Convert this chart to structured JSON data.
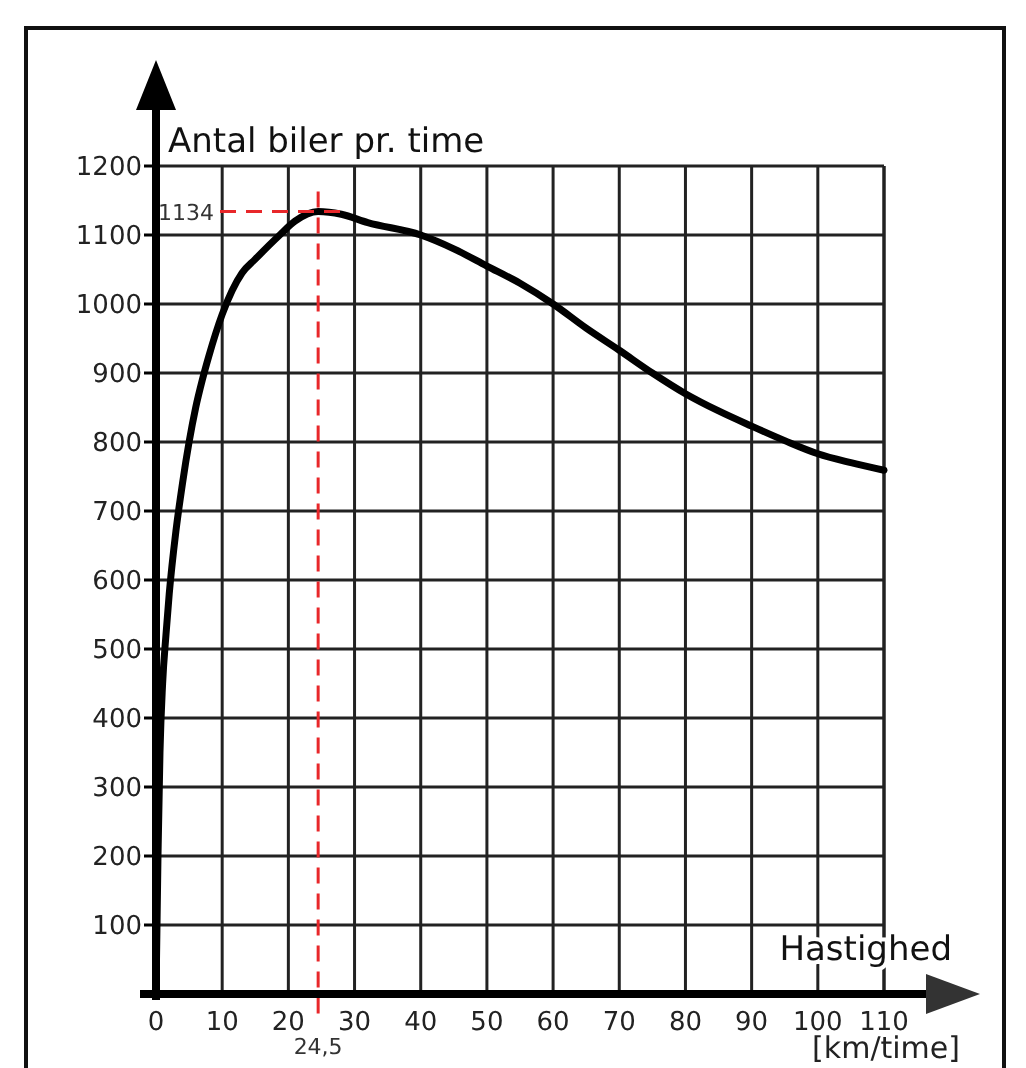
{
  "chart_data": {
    "type": "line",
    "xlabel": "Hastighed",
    "ylabel": "Antal biler pr. time",
    "annotations": [
      "[km/time]"
    ],
    "series": [
      {
        "color": "#000000",
        "x": [
          0,
          0.3,
          0.6,
          1,
          1.5,
          2,
          3,
          4,
          5,
          6,
          7,
          8,
          10,
          13,
          15,
          18.7,
          21,
          24.5,
          28,
          32,
          40,
          45,
          50,
          55,
          60,
          65,
          70,
          75,
          80,
          85,
          90,
          95,
          100,
          105,
          110
        ],
        "values": [
          0,
          200,
          350,
          450,
          520,
          580,
          670,
          740,
          800,
          850,
          890,
          925,
          985,
          1045,
          1065,
          1100,
          1120,
          1134,
          1130,
          1118,
          1100,
          1080,
          1055,
          1030,
          1000,
          965,
          933,
          900,
          870,
          845,
          823,
          802,
          783,
          770,
          759
        ]
      }
    ],
    "xlim": [
      0,
      110
    ],
    "ylim": [
      0,
      1200
    ],
    "xticks": [
      0,
      10,
      20,
      30,
      40,
      50,
      60,
      70,
      80,
      90,
      100,
      110
    ],
    "yticks": [
      100,
      200,
      300,
      400,
      500,
      600,
      700,
      800,
      900,
      1000,
      1100,
      1200
    ],
    "grid": true,
    "marker": "none",
    "line_style": "solid",
    "ref_lines": [
      {
        "axis": "x",
        "value": 24.5,
        "label": "24,5",
        "color": "#e8272a",
        "line_style": "dashed"
      },
      {
        "axis": "y",
        "value": 1134,
        "label": "1134",
        "color": "#e8272a",
        "line_style": "dashed"
      }
    ]
  }
}
